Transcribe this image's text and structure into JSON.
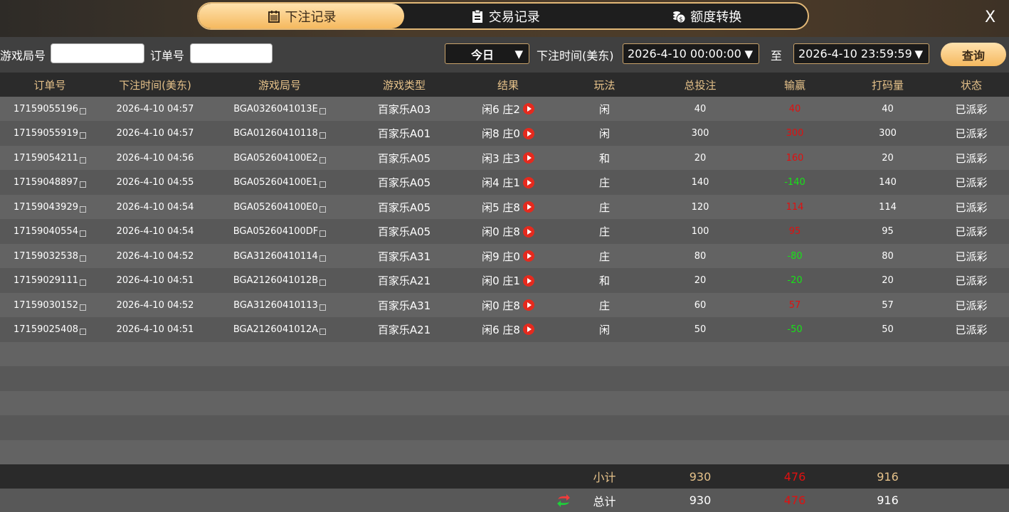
{
  "tabs": [
    {
      "label": "下注记录",
      "icon": "calendar-icon",
      "active": true
    },
    {
      "label": "交易记录",
      "icon": "clipboard-icon"
    },
    {
      "label": "额度转换",
      "icon": "coins-icon"
    }
  ],
  "close_label": "X",
  "filter": {
    "game_id_label": "游戏局号",
    "game_id_value": "",
    "order_label": "订单号",
    "order_value": "",
    "range_select": "今日",
    "time_label": "下注时间(美东)",
    "start": "2026-4-10 00:00:00",
    "to_label": "至",
    "end": "2026-4-10 23:59:59",
    "query_label": "查询"
  },
  "columns": [
    "订单号",
    "下注时间(美东)",
    "游戏局号",
    "游戏类型",
    "结果",
    "玩法",
    "总投注",
    "输赢",
    "打码量",
    "状态"
  ],
  "rows": [
    [
      "17159055196",
      "2026-4-10 04:57",
      "BGA0326041013E",
      "百家乐A03",
      "闲6 庄2",
      "闲",
      "40",
      "40",
      "40",
      "已派彩",
      "red"
    ],
    [
      "17159055919",
      "2026-4-10 04:57",
      "BGA01260410118",
      "百家乐A01",
      "闲8 庄0",
      "闲",
      "300",
      "300",
      "300",
      "已派彩",
      "red"
    ],
    [
      "17159054211",
      "2026-4-10 04:56",
      "BGA052604100E2",
      "百家乐A05",
      "闲3 庄3",
      "和",
      "20",
      "160",
      "20",
      "已派彩",
      "red"
    ],
    [
      "17159048897",
      "2026-4-10 04:55",
      "BGA052604100E1",
      "百家乐A05",
      "闲4 庄1",
      "庄",
      "140",
      "-140",
      "140",
      "已派彩",
      "green"
    ],
    [
      "17159043929",
      "2026-4-10 04:54",
      "BGA052604100E0",
      "百家乐A05",
      "闲5 庄8",
      "庄",
      "120",
      "114",
      "114",
      "已派彩",
      "red"
    ],
    [
      "17159040554",
      "2026-4-10 04:54",
      "BGA052604100DF",
      "百家乐A05",
      "闲0 庄8",
      "庄",
      "100",
      "95",
      "95",
      "已派彩",
      "red"
    ],
    [
      "17159032538",
      "2026-4-10 04:52",
      "BGA31260410114",
      "百家乐A31",
      "闲9 庄0",
      "庄",
      "80",
      "-80",
      "80",
      "已派彩",
      "green"
    ],
    [
      "17159029111",
      "2026-4-10 04:51",
      "BGA2126041012B",
      "百家乐A21",
      "闲0 庄1",
      "和",
      "20",
      "-20",
      "20",
      "已派彩",
      "green"
    ],
    [
      "17159030152",
      "2026-4-10 04:52",
      "BGA31260410113",
      "百家乐A31",
      "闲0 庄8",
      "庄",
      "60",
      "57",
      "57",
      "已派彩",
      "red"
    ],
    [
      "17159025408",
      "2026-4-10 04:51",
      "BGA2126041012A",
      "百家乐A21",
      "闲6 庄8",
      "闲",
      "50",
      "-50",
      "50",
      "已派彩",
      "green"
    ]
  ],
  "subtotal": {
    "label": "小计",
    "bet": "930",
    "win": "476",
    "turnover": "916"
  },
  "total": {
    "label": "总计",
    "bet": "930",
    "win": "476",
    "turnover": "916",
    "icon": "refresh-icon"
  },
  "colors": {
    "accent": "#f5b95f",
    "win": "#e01010",
    "loss": "#17e317"
  }
}
